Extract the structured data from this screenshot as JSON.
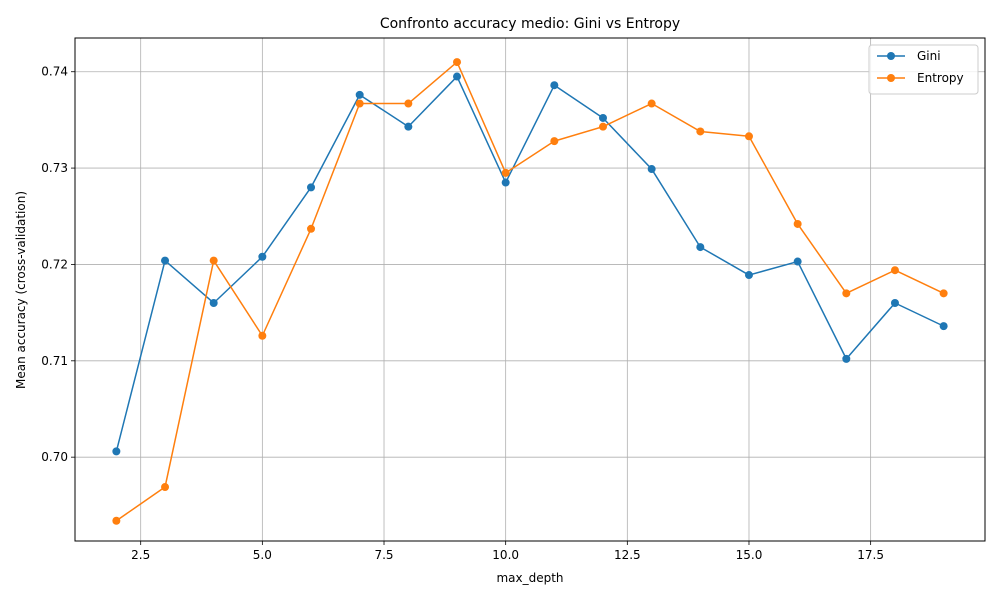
{
  "chart_data": {
    "type": "line",
    "title": "Confronto accuracy medio: Gini vs Entropy",
    "xlabel": "max_depth",
    "ylabel": "Mean accuracy (cross-validation)",
    "xlim": [
      1.15,
      19.85
    ],
    "ylim": [
      0.6913,
      0.7435
    ],
    "xticks": [
      2.5,
      5.0,
      7.5,
      10.0,
      12.5,
      15.0,
      17.5
    ],
    "xtick_labels": [
      "2.5",
      "5.0",
      "7.5",
      "10.0",
      "12.5",
      "15.0",
      "17.5"
    ],
    "yticks": [
      0.7,
      0.71,
      0.72,
      0.73,
      0.74
    ],
    "ytick_labels": [
      "0.70",
      "0.71",
      "0.72",
      "0.73",
      "0.74"
    ],
    "grid": true,
    "legend_position": "top-right",
    "x": [
      2,
      3,
      4,
      5,
      6,
      7,
      8,
      9,
      10,
      11,
      12,
      13,
      14,
      15,
      16,
      17,
      18,
      19
    ],
    "series": [
      {
        "name": "Gini",
        "color": "#1f77b4",
        "values": [
          0.7006,
          0.7204,
          0.716,
          0.7208,
          0.728,
          0.7376,
          0.7343,
          0.7395,
          0.7285,
          0.7386,
          0.7352,
          0.7299,
          0.7218,
          0.7189,
          0.7203,
          0.7102,
          0.716,
          0.7136
        ]
      },
      {
        "name": "Entropy",
        "color": "#ff7f0e",
        "values": [
          0.6934,
          0.6969,
          0.7204,
          0.7126,
          0.7237,
          0.7367,
          0.7367,
          0.741,
          0.7295,
          0.7328,
          0.7343,
          0.7367,
          0.7338,
          0.7333,
          0.7242,
          0.717,
          0.7194,
          0.717
        ]
      }
    ]
  }
}
